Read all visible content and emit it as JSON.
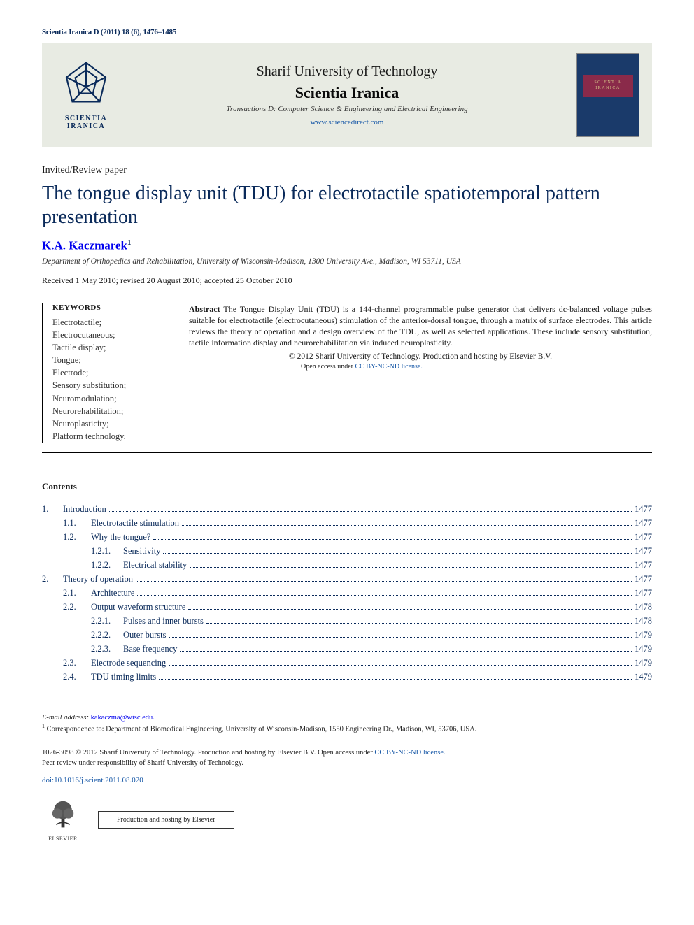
{
  "journal_ref": "Scientia Iranica D (2011) 18 (6), 1476–1485",
  "masthead": {
    "logo_caption": "SCIENTIA IRANICA",
    "university": "Sharif University of Technology",
    "journal": "Scientia Iranica",
    "transactions": "Transactions D: Computer Science & Engineering and Electrical Engineering",
    "url": "www.sciencedirect.com",
    "cover_text": "SCIENTIA IRANICA"
  },
  "paper_type": "Invited/Review paper",
  "title": "The tongue display unit (TDU) for electrotactile spatiotemporal pattern presentation",
  "author": "K.A. Kaczmarek",
  "author_sup": "1",
  "affiliation": "Department of Orthopedics and Rehabilitation, University of Wisconsin-Madison, 1300 University Ave., Madison, WI 53711, USA",
  "dates": "Received 1 May 2010; revised 20 August 2010; accepted 25 October 2010",
  "keywords_head": "KEYWORDS",
  "keywords": [
    "Electrotactile;",
    "Electrocutaneous;",
    "Tactile display;",
    "Tongue;",
    "Electrode;",
    "Sensory substitution;",
    "Neuromodulation;",
    "Neurorehabilitation;",
    "Neuroplasticity;",
    "Platform technology."
  ],
  "abstract_head": "Abstract",
  "abstract": "The Tongue Display Unit (TDU) is a 144-channel programmable pulse generator that delivers dc-balanced voltage pulses suitable for electrotactile (electrocutaneous) stimulation of the anterior-dorsal tongue, through a matrix of surface electrodes. This article reviews the theory of operation and a design overview of the TDU, as well as selected applications. These include sensory substitution, tactile information display and neurorehabilitation via induced neuroplasticity.",
  "copyright": "© 2012 Sharif University of Technology. Production and hosting by Elsevier B.V.",
  "license_prefix": "Open access under ",
  "license_link": "CC BY-NC-ND license.",
  "contents_head": "Contents",
  "toc": [
    {
      "level": 1,
      "num": "1.",
      "label": "Introduction",
      "page": "1477"
    },
    {
      "level": 2,
      "num": "1.1.",
      "label": "Electrotactile stimulation",
      "page": "1477"
    },
    {
      "level": 2,
      "num": "1.2.",
      "label": "Why the tongue?",
      "page": "1477"
    },
    {
      "level": 3,
      "num": "1.2.1.",
      "label": "Sensitivity",
      "page": "1477"
    },
    {
      "level": 3,
      "num": "1.2.2.",
      "label": "Electrical stability",
      "page": "1477"
    },
    {
      "level": 1,
      "num": "2.",
      "label": "Theory of operation",
      "page": "1477"
    },
    {
      "level": 2,
      "num": "2.1.",
      "label": "Architecture",
      "page": "1477"
    },
    {
      "level": 2,
      "num": "2.2.",
      "label": "Output waveform structure",
      "page": "1478"
    },
    {
      "level": 3,
      "num": "2.2.1.",
      "label": "Pulses and inner bursts",
      "page": "1478"
    },
    {
      "level": 3,
      "num": "2.2.2.",
      "label": "Outer bursts",
      "page": "1479"
    },
    {
      "level": 3,
      "num": "2.2.3.",
      "label": "Base frequency",
      "page": "1479"
    },
    {
      "level": 2,
      "num": "2.3.",
      "label": "Electrode sequencing",
      "page": "1479"
    },
    {
      "level": 2,
      "num": "2.4.",
      "label": "TDU timing limits",
      "page": "1479"
    }
  ],
  "footnotes": {
    "email_label": "E-mail address:",
    "email": "kakaczma@wisc.edu.",
    "corr_sup": "1",
    "corr": "Correspondence to: Department of Biomedical Engineering, University of Wisconsin-Madison, 1550 Engineering Dr., Madison, WI, 53706, USA."
  },
  "footer": {
    "issn_line_prefix": "1026-3098 © 2012 Sharif University of Technology. Production and hosting by Elsevier B.V. ",
    "issn_license_prefix": "Open access under ",
    "issn_license_link": "CC BY-NC-ND license.",
    "peer": "Peer review under responsibility of Sharif University of Technology.",
    "doi": "doi:10.1016/j.scient.2011.08.020",
    "elsevier_caption": "ELSEVIER",
    "hosting": "Production and hosting by Elsevier"
  },
  "colors": {
    "link": "#1a5aa8",
    "heading": "#0a2a5a",
    "masthead_bg": "#e8ebe3",
    "cover_bg": "#1a3a6a",
    "cover_band": "#8a2a4a"
  }
}
